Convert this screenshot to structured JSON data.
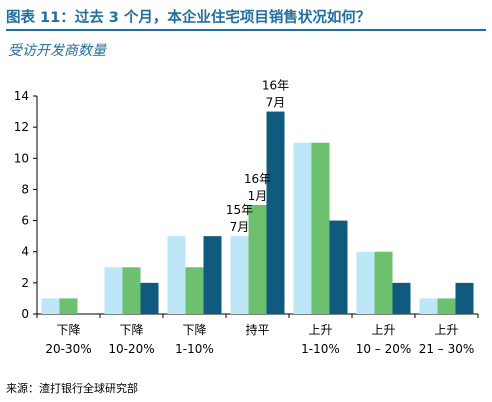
{
  "header": {
    "title": "图表 11：过去 3 个月，本企业住宅项目销售状况如何？",
    "subtitle": "受访开发商数量"
  },
  "footer": {
    "source": "来源：渣打银行全球研究部"
  },
  "chart_data": {
    "type": "bar",
    "categories": [
      [
        "下降",
        "20-30%"
      ],
      [
        "下降",
        "10-20%"
      ],
      [
        "下降",
        "1-10%"
      ],
      [
        "持平",
        ""
      ],
      [
        "上升",
        "1-10%"
      ],
      [
        "上升",
        "10 – 20%"
      ],
      [
        "上升",
        "21 – 30%"
      ]
    ],
    "series": [
      {
        "name": "15年7月",
        "color": "#bde6f7",
        "values": [
          1,
          3,
          5,
          5,
          11,
          4,
          1
        ]
      },
      {
        "name": "16年1月",
        "color": "#6dc06d",
        "values": [
          1,
          3,
          3,
          7,
          11,
          4,
          1
        ]
      },
      {
        "name": "16年7月",
        "color": "#0f5a7e",
        "values": [
          0,
          2,
          5,
          13,
          6,
          2,
          2
        ]
      }
    ],
    "annotations": [
      {
        "series": 0,
        "category": 3,
        "lines": [
          "15年",
          "7月"
        ]
      },
      {
        "series": 1,
        "category": 3,
        "lines": [
          "16年",
          "1月"
        ]
      },
      {
        "series": 2,
        "category": 3,
        "lines": [
          "16年",
          "7月"
        ]
      }
    ],
    "ylim": [
      0,
      14
    ],
    "yticks": [
      0,
      2,
      4,
      6,
      8,
      10,
      12,
      14
    ],
    "xlabel": "",
    "ylabel": "",
    "grid": false,
    "legend": "none"
  }
}
